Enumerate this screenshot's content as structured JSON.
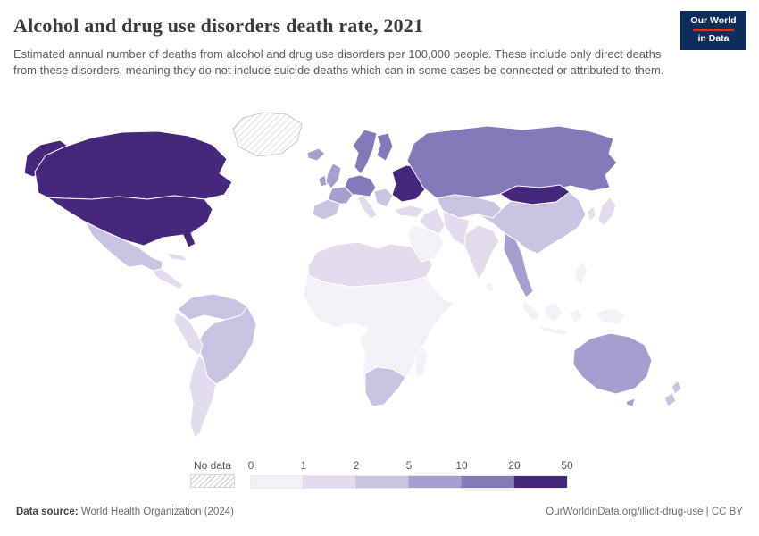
{
  "header": {
    "title": "Alcohol and drug use disorders death rate, 2021",
    "subtitle": "Estimated annual number of deaths from alcohol and drug use disorders per 100,000 people. These include only direct deaths from these disorders, meaning they do not include suicide deaths which can in some cases be connected or attributed to them.",
    "logo_line1": "Our World",
    "logo_line2": "in Data",
    "logo_bg": "#0d2e5a",
    "logo_accent": "#d1341f"
  },
  "legend": {
    "no_data_label": "No data",
    "thresholds": [
      "0",
      "1",
      "2",
      "5",
      "10",
      "20",
      "50"
    ]
  },
  "footer": {
    "source_label": "Data source:",
    "source_text": " World Health Organization (2024)",
    "credit_text": "OurWorldinData.org/illicit-drug-use | CC BY"
  },
  "chart_data": {
    "type": "choropleth",
    "title": "Alcohol and drug use disorders death rate",
    "year": 2021,
    "unit": "estimated deaths per 100,000 people",
    "bins": [
      "0-1",
      "1-2",
      "2-5",
      "5-10",
      "10-20",
      "20-50"
    ],
    "bin_colors": [
      "#f3f0f8",
      "#e2dcee",
      "#c9c2e0",
      "#a79ecf",
      "#837aba",
      "#45277c"
    ],
    "no_data": {
      "label": "No data",
      "style": "hatched"
    },
    "regions": {
      "greenland": "no-data",
      "alaska": "20-50",
      "canada": "20-50",
      "united_states": "20-50",
      "mexico": "2-5",
      "central_america": "1-2",
      "cuba": "1-2",
      "northern_south_america": "2-5",
      "brazil": "2-5",
      "western_south_america": "1-2",
      "southern_cone": "1-2",
      "africa": "0-1",
      "north_africa": "1-2",
      "southern_africa": "2-5",
      "madagascar": "0-1",
      "iceland": "5-10",
      "uk_ireland": "5-10",
      "scandinavia": "10-20",
      "finland": "10-20",
      "iberia": "2-5",
      "france": "5-10",
      "central_europe": "10-20",
      "italy": "1-2",
      "balkans": "2-5",
      "baltics_belarus_ukraine": "20-50",
      "turkey": "1-2",
      "russia": "10-20",
      "central_asia": "2-5",
      "mongolia": "20-50",
      "china": "2-5",
      "south_asia_west": "1-2",
      "india": "1-2",
      "iran": "1-2",
      "arabian_peninsula": "0-1",
      "myanmar_thailand": "5-10",
      "indonesia": "0-1",
      "papua_new_guinea": "0-1",
      "philippines": "0-1",
      "japan": "1-2",
      "korea": "1-2",
      "sri_lanka": "0-1",
      "australia": "5-10",
      "new_zealand": "2-5"
    }
  }
}
